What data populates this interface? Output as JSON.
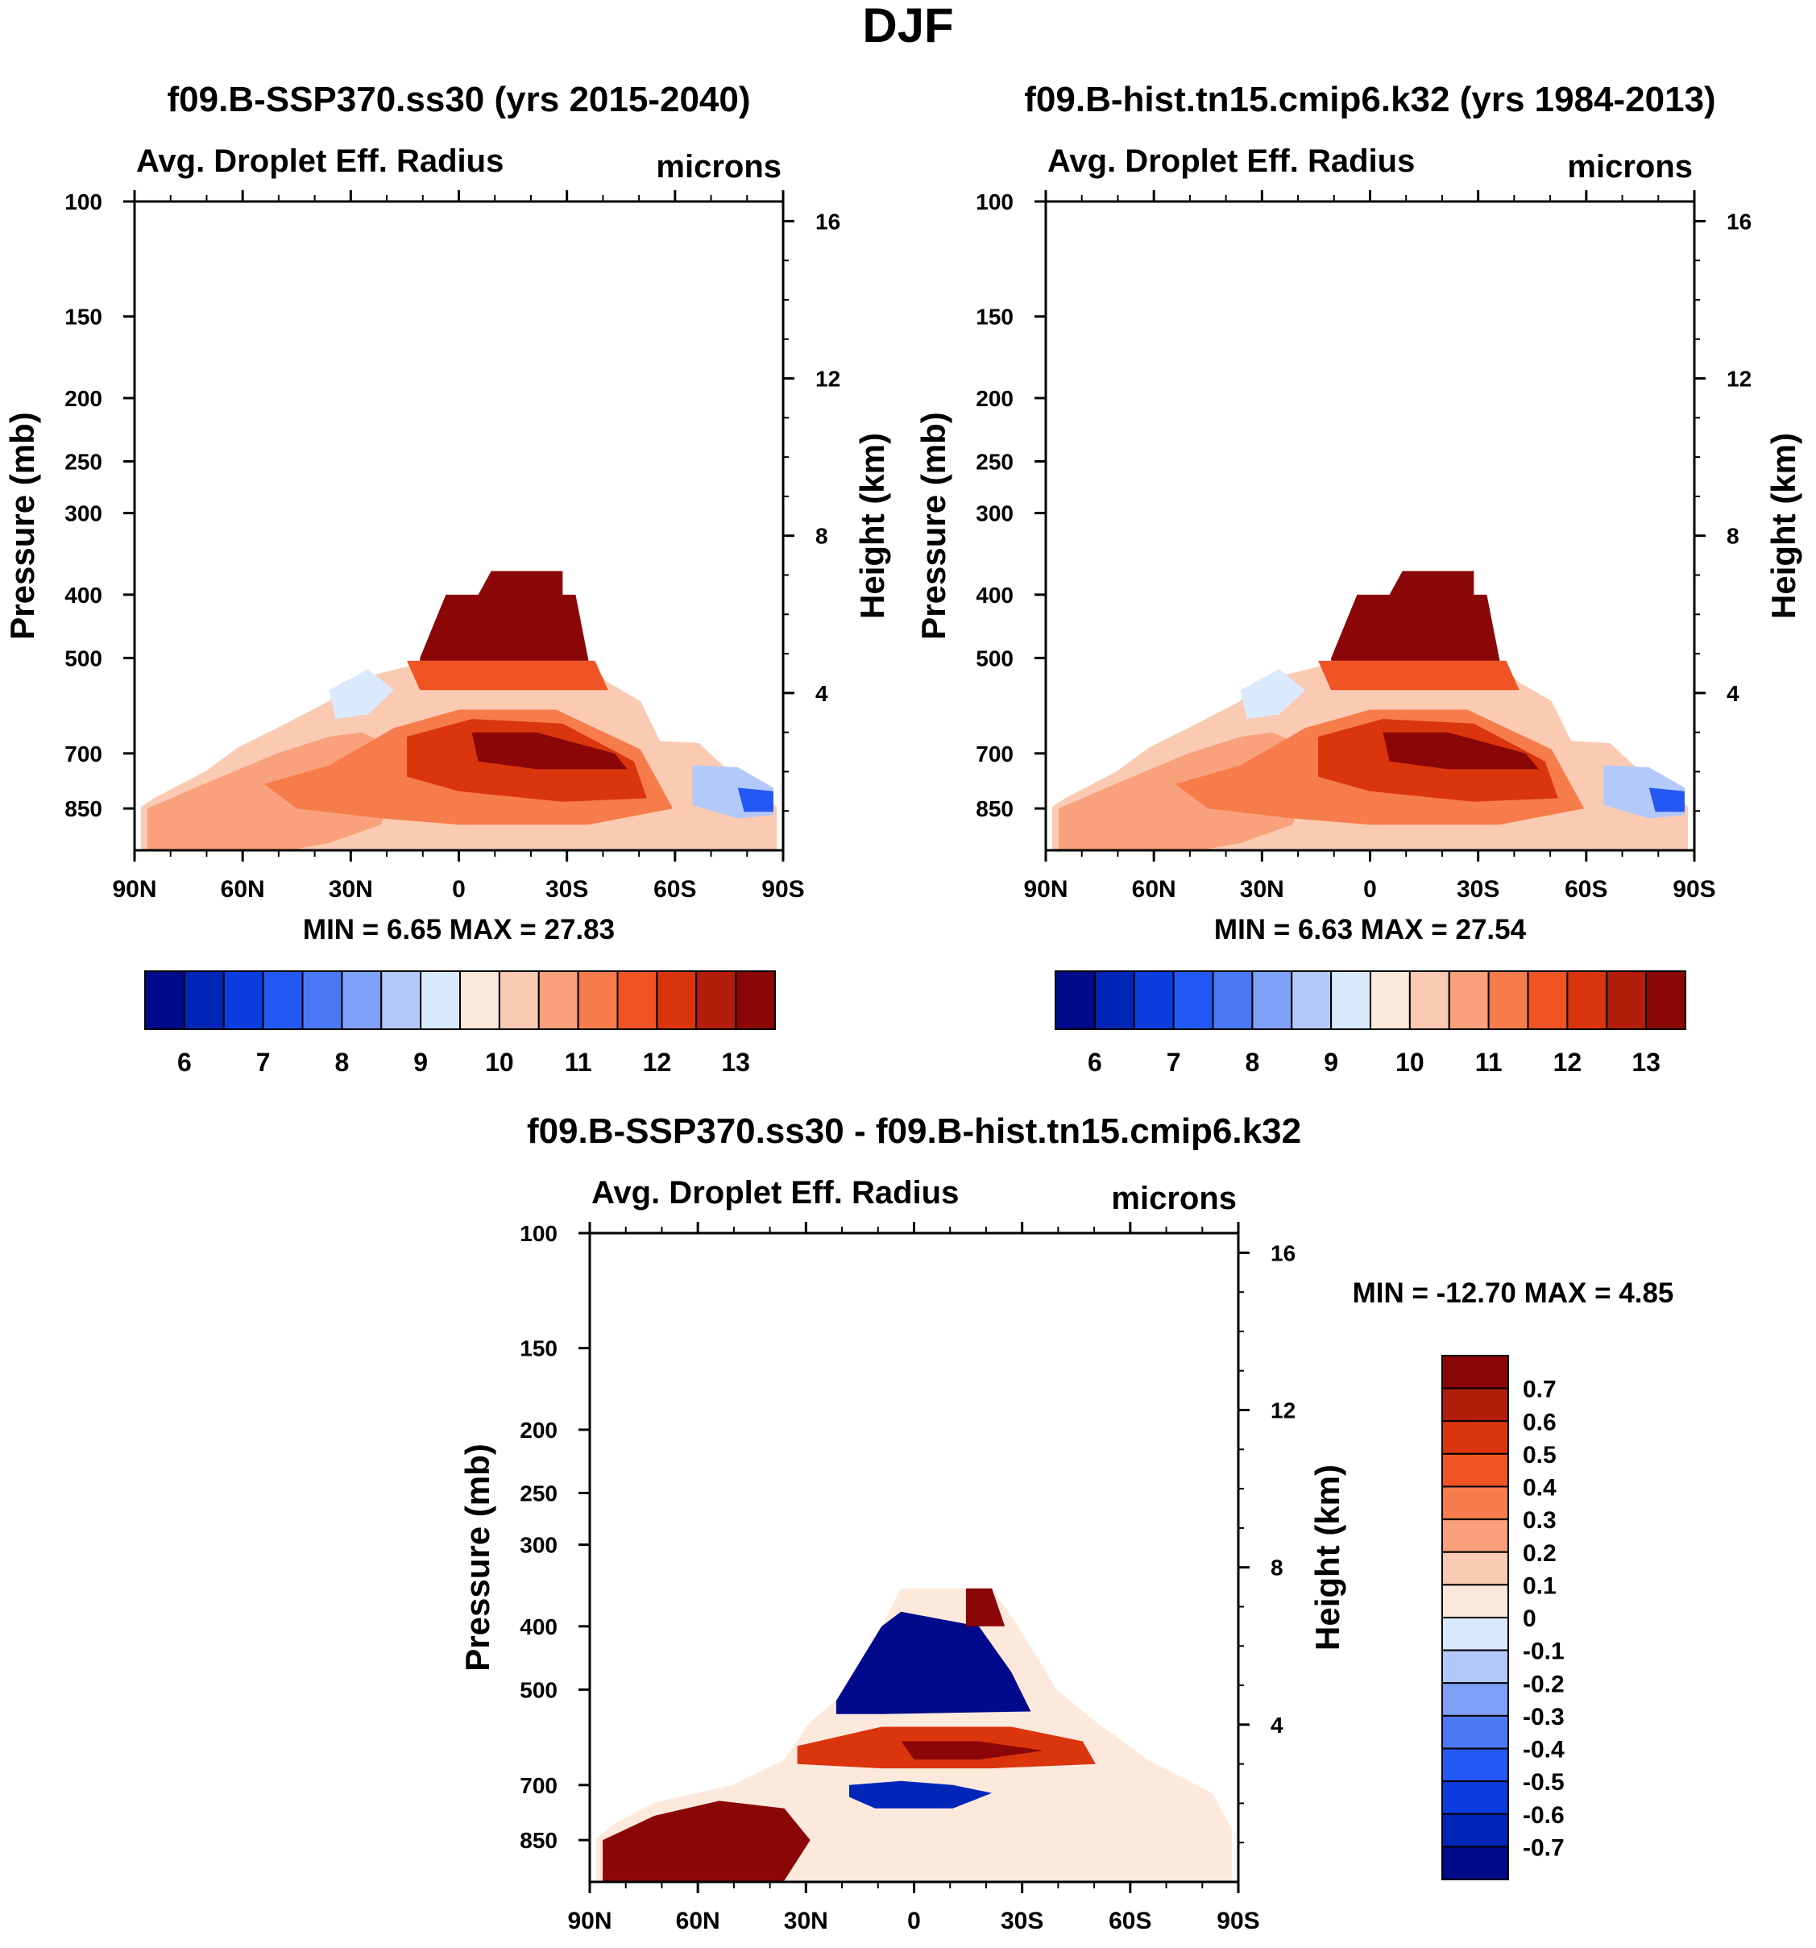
{
  "figure_title": "DJF",
  "chart_data": [
    {
      "type": "heatmap",
      "id": "ssp370",
      "title": "f09.B-SSP370.ss30 (yrs 2015-2040)",
      "variable": "Avg. Droplet Eff. Radius",
      "units": "microns",
      "ylabel": "Pressure (mb)",
      "ylabel_right": "Height (km)",
      "x_ticks": [
        "90N",
        "60N",
        "30N",
        "0",
        "30S",
        "60S",
        "90S"
      ],
      "y_ticks": [
        "100",
        "150",
        "200",
        "250",
        "300",
        "400",
        "500",
        "700",
        "850"
      ],
      "y_ticks_right": [
        "16",
        "12",
        "8",
        "4"
      ],
      "stats": "MIN =   6.65   MAX =  27.83",
      "colorbar": {
        "orientation": "horizontal",
        "labels": [
          "6",
          "7",
          "8",
          "9",
          "10",
          "11",
          "12",
          "13"
        ],
        "colors": [
          "#000a8a",
          "#0026b8",
          "#0c3de0",
          "#2458f5",
          "#4a78f5",
          "#7ea0f7",
          "#b3c9fa",
          "#dbe9fd",
          "#fde9dc",
          "#fbcab2",
          "#f8a17c",
          "#f67c4c",
          "#f05424",
          "#db350e",
          "#b31d0b",
          "#8b0707"
        ]
      }
    },
    {
      "type": "heatmap",
      "id": "hist",
      "title": "f09.B-hist.tn15.cmip6.k32 (yrs 1984-2013)",
      "variable": "Avg. Droplet Eff. Radius",
      "units": "microns",
      "ylabel": "Pressure (mb)",
      "ylabel_right": "Height (km)",
      "x_ticks": [
        "90N",
        "60N",
        "30N",
        "0",
        "30S",
        "60S",
        "90S"
      ],
      "y_ticks": [
        "100",
        "150",
        "200",
        "250",
        "300",
        "400",
        "500",
        "700",
        "850"
      ],
      "y_ticks_right": [
        "16",
        "12",
        "8",
        "4"
      ],
      "stats": "MIN =   6.63   MAX =  27.54",
      "colorbar": {
        "orientation": "horizontal",
        "labels": [
          "6",
          "7",
          "8",
          "9",
          "10",
          "11",
          "12",
          "13"
        ],
        "colors": [
          "#000a8a",
          "#0026b8",
          "#0c3de0",
          "#2458f5",
          "#4a78f5",
          "#7ea0f7",
          "#b3c9fa",
          "#dbe9fd",
          "#fde9dc",
          "#fbcab2",
          "#f8a17c",
          "#f67c4c",
          "#f05424",
          "#db350e",
          "#b31d0b",
          "#8b0707"
        ]
      }
    },
    {
      "type": "heatmap",
      "id": "diff",
      "title": "f09.B-SSP370.ss30 - f09.B-hist.tn15.cmip6.k32",
      "variable": "Avg. Droplet Eff. Radius",
      "units": "microns",
      "ylabel": "Pressure (mb)",
      "ylabel_right": "Height (km)",
      "x_ticks": [
        "90N",
        "60N",
        "30N",
        "0",
        "30S",
        "60S",
        "90S"
      ],
      "y_ticks": [
        "100",
        "150",
        "200",
        "250",
        "300",
        "400",
        "500",
        "700",
        "850"
      ],
      "y_ticks_right": [
        "16",
        "12",
        "8",
        "4"
      ],
      "stats": "MIN = -12.70   MAX =   4.85",
      "colorbar": {
        "orientation": "vertical",
        "labels": [
          "0.7",
          "0.6",
          "0.5",
          "0.4",
          "0.3",
          "0.2",
          "0.1",
          "0",
          "-0.1",
          "-0.2",
          "-0.3",
          "-0.4",
          "-0.5",
          "-0.6",
          "-0.7"
        ],
        "colors": [
          "#8b0707",
          "#b31d0b",
          "#db350e",
          "#f05424",
          "#f67c4c",
          "#f8a17c",
          "#fbcab2",
          "#fde9dc",
          "#dbe9fd",
          "#b3c9fa",
          "#7ea0f7",
          "#4a78f5",
          "#2458f5",
          "#0c3de0",
          "#0026b8",
          "#000a8a"
        ]
      }
    }
  ]
}
